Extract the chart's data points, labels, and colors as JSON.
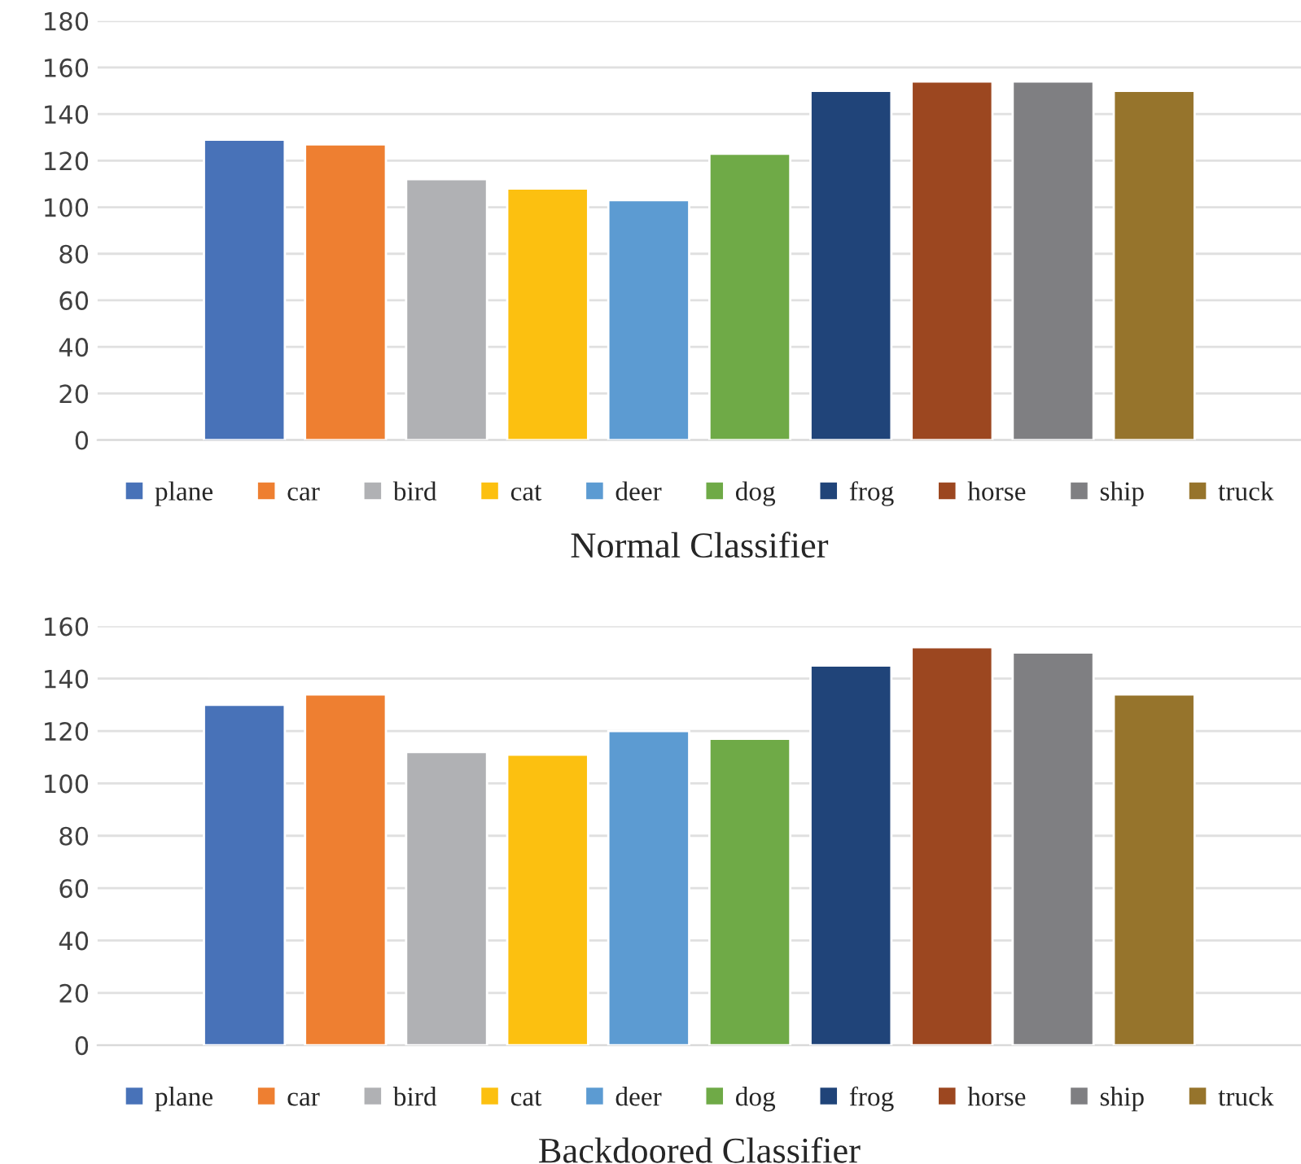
{
  "chart_data": [
    {
      "type": "bar",
      "title": "Normal Classifier",
      "categories": [
        null
      ],
      "ylim": [
        0,
        180
      ],
      "yticks": [
        0,
        20,
        40,
        60,
        80,
        100,
        120,
        140,
        160,
        180
      ],
      "grid": "y",
      "legend": "bottom",
      "series": [
        {
          "name": "plane",
          "color": "#4872b8",
          "values": [
            129
          ]
        },
        {
          "name": "car",
          "color": "#ee7f31",
          "values": [
            127
          ]
        },
        {
          "name": "bird",
          "color": "#b0b1b4",
          "values": [
            112
          ]
        },
        {
          "name": "cat",
          "color": "#fcc010",
          "values": [
            108
          ]
        },
        {
          "name": "deer",
          "color": "#5c9bd2",
          "values": [
            103
          ]
        },
        {
          "name": "dog",
          "color": "#6faa47",
          "values": [
            123
          ]
        },
        {
          "name": "frog",
          "color": "#204479",
          "values": [
            150
          ]
        },
        {
          "name": "horse",
          "color": "#9c4720",
          "values": [
            154
          ]
        },
        {
          "name": "ship",
          "color": "#7f7f82",
          "values": [
            154
          ]
        },
        {
          "name": "truck",
          "color": "#96742c",
          "values": [
            150
          ]
        }
      ]
    },
    {
      "type": "bar",
      "title": "Backdoored Classifier",
      "categories": [
        null
      ],
      "ylim": [
        0,
        160
      ],
      "yticks": [
        0,
        20,
        40,
        60,
        80,
        100,
        120,
        140,
        160
      ],
      "grid": "y",
      "legend": "bottom",
      "series": [
        {
          "name": "plane",
          "color": "#4872b8",
          "values": [
            130
          ]
        },
        {
          "name": "car",
          "color": "#ee7f31",
          "values": [
            134
          ]
        },
        {
          "name": "bird",
          "color": "#b0b1b4",
          "values": [
            112
          ]
        },
        {
          "name": "cat",
          "color": "#fcc010",
          "values": [
            111
          ]
        },
        {
          "name": "deer",
          "color": "#5c9bd2",
          "values": [
            120
          ]
        },
        {
          "name": "dog",
          "color": "#6faa47",
          "values": [
            117
          ]
        },
        {
          "name": "frog",
          "color": "#204479",
          "values": [
            145
          ]
        },
        {
          "name": "horse",
          "color": "#9c4720",
          "values": [
            152
          ]
        },
        {
          "name": "ship",
          "color": "#7f7f82",
          "values": [
            150
          ]
        },
        {
          "name": "truck",
          "color": "#96742c",
          "values": [
            134
          ]
        }
      ]
    }
  ]
}
